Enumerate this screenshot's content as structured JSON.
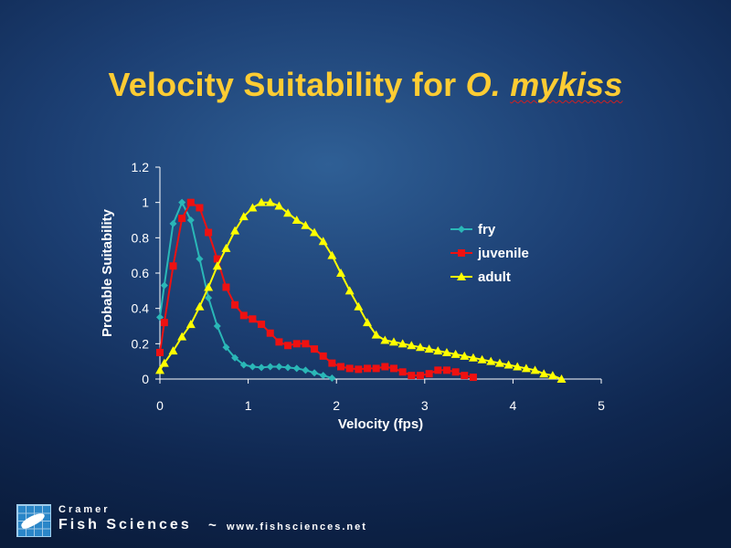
{
  "slide": {
    "title_main": "Velocity Suitability for",
    "title_species_genus": "O.",
    "title_species_name": "mykiss"
  },
  "footer": {
    "company_line1": "Cramer",
    "company_line2": "Fish Sciences",
    "separator": "~",
    "url": "www.fishsciences.net"
  },
  "colors": {
    "title": "#ffcc33",
    "axis_text": "#ffffff",
    "fry": "#2ab7b7",
    "juvenile": "#ee1111",
    "adult": "#ffff00"
  },
  "chart_data": {
    "type": "line",
    "xlabel": "Velocity (fps)",
    "ylabel": "Probable Suitability",
    "xlim": [
      0,
      5
    ],
    "ylim": [
      0,
      1.2
    ],
    "x_ticks": [
      "0",
      "1",
      "2",
      "3",
      "4",
      "5"
    ],
    "y_ticks": [
      "0",
      "0.2",
      "0.4",
      "0.6",
      "0.8",
      "1",
      "1.2"
    ],
    "legend_position": "right",
    "grid": false,
    "series": [
      {
        "name": "fry",
        "marker": "diamond",
        "color": "#2ab7b7",
        "points": [
          [
            0.0,
            0.35
          ],
          [
            0.05,
            0.53
          ],
          [
            0.15,
            0.88
          ],
          [
            0.25,
            1.0
          ],
          [
            0.35,
            0.9
          ],
          [
            0.45,
            0.68
          ],
          [
            0.55,
            0.46
          ],
          [
            0.65,
            0.3
          ],
          [
            0.75,
            0.18
          ],
          [
            0.85,
            0.12
          ],
          [
            0.95,
            0.08
          ],
          [
            1.05,
            0.07
          ],
          [
            1.15,
            0.065
          ],
          [
            1.25,
            0.07
          ],
          [
            1.35,
            0.07
          ],
          [
            1.45,
            0.065
          ],
          [
            1.55,
            0.06
          ],
          [
            1.65,
            0.05
          ],
          [
            1.75,
            0.035
          ],
          [
            1.85,
            0.02
          ],
          [
            1.95,
            0.005
          ]
        ]
      },
      {
        "name": "juvenile",
        "marker": "square",
        "color": "#ee1111",
        "points": [
          [
            0.0,
            0.15
          ],
          [
            0.05,
            0.32
          ],
          [
            0.15,
            0.64
          ],
          [
            0.25,
            0.91
          ],
          [
            0.35,
            1.0
          ],
          [
            0.45,
            0.97
          ],
          [
            0.55,
            0.83
          ],
          [
            0.65,
            0.68
          ],
          [
            0.75,
            0.52
          ],
          [
            0.85,
            0.42
          ],
          [
            0.95,
            0.36
          ],
          [
            1.05,
            0.34
          ],
          [
            1.15,
            0.31
          ],
          [
            1.25,
            0.26
          ],
          [
            1.35,
            0.21
          ],
          [
            1.45,
            0.19
          ],
          [
            1.55,
            0.2
          ],
          [
            1.65,
            0.2
          ],
          [
            1.75,
            0.17
          ],
          [
            1.85,
            0.13
          ],
          [
            1.95,
            0.09
          ],
          [
            2.05,
            0.07
          ],
          [
            2.15,
            0.06
          ],
          [
            2.25,
            0.055
          ],
          [
            2.35,
            0.06
          ],
          [
            2.45,
            0.06
          ],
          [
            2.55,
            0.07
          ],
          [
            2.65,
            0.06
          ],
          [
            2.75,
            0.04
          ],
          [
            2.85,
            0.02
          ],
          [
            2.95,
            0.02
          ],
          [
            3.05,
            0.03
          ],
          [
            3.15,
            0.05
          ],
          [
            3.25,
            0.05
          ],
          [
            3.35,
            0.04
          ],
          [
            3.45,
            0.02
          ],
          [
            3.55,
            0.01
          ]
        ]
      },
      {
        "name": "adult",
        "marker": "triangle",
        "color": "#ffff00",
        "points": [
          [
            0.0,
            0.05
          ],
          [
            0.05,
            0.09
          ],
          [
            0.15,
            0.16
          ],
          [
            0.25,
            0.24
          ],
          [
            0.35,
            0.31
          ],
          [
            0.45,
            0.41
          ],
          [
            0.55,
            0.52
          ],
          [
            0.65,
            0.64
          ],
          [
            0.75,
            0.74
          ],
          [
            0.85,
            0.84
          ],
          [
            0.95,
            0.92
          ],
          [
            1.05,
            0.97
          ],
          [
            1.15,
            1.0
          ],
          [
            1.25,
            1.0
          ],
          [
            1.35,
            0.98
          ],
          [
            1.45,
            0.94
          ],
          [
            1.55,
            0.9
          ],
          [
            1.65,
            0.87
          ],
          [
            1.75,
            0.83
          ],
          [
            1.85,
            0.78
          ],
          [
            1.95,
            0.7
          ],
          [
            2.05,
            0.6
          ],
          [
            2.15,
            0.5
          ],
          [
            2.25,
            0.41
          ],
          [
            2.35,
            0.32
          ],
          [
            2.45,
            0.25
          ],
          [
            2.55,
            0.22
          ],
          [
            2.65,
            0.21
          ],
          [
            2.75,
            0.2
          ],
          [
            2.85,
            0.19
          ],
          [
            2.95,
            0.18
          ],
          [
            3.05,
            0.17
          ],
          [
            3.15,
            0.16
          ],
          [
            3.25,
            0.15
          ],
          [
            3.35,
            0.14
          ],
          [
            3.45,
            0.13
          ],
          [
            3.55,
            0.12
          ],
          [
            3.65,
            0.11
          ],
          [
            3.75,
            0.1
          ],
          [
            3.85,
            0.09
          ],
          [
            3.95,
            0.08
          ],
          [
            4.05,
            0.07
          ],
          [
            4.15,
            0.06
          ],
          [
            4.25,
            0.05
          ],
          [
            4.35,
            0.03
          ],
          [
            4.45,
            0.02
          ],
          [
            4.55,
            0.0
          ]
        ]
      }
    ]
  }
}
